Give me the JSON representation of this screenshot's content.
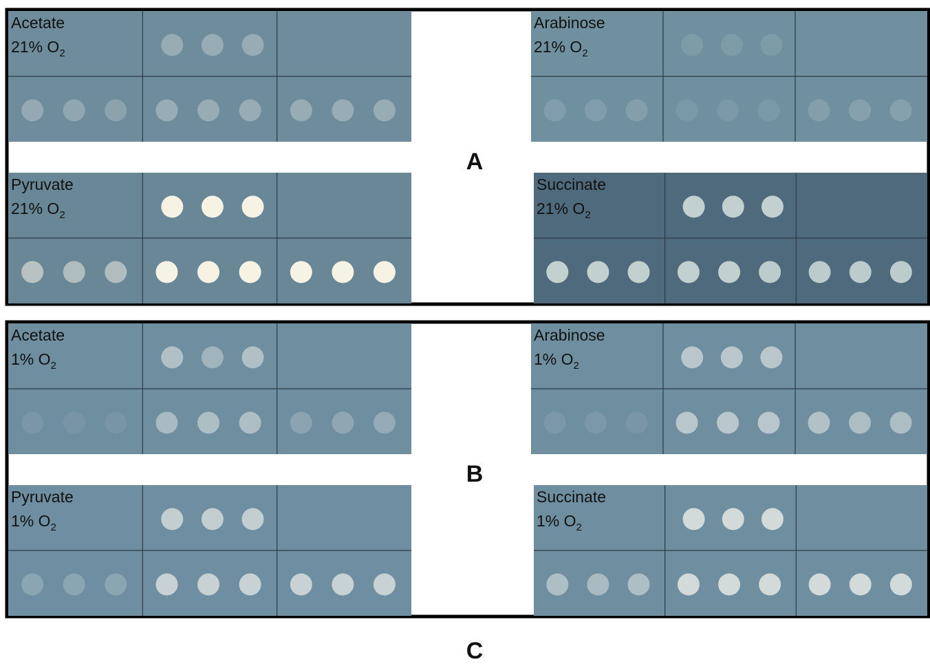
{
  "panels": [
    {
      "label": "A",
      "plates": [
        {
          "carbon_source": "Acetate",
          "oxygen": "21% O",
          "oxygen_subscript": "2"
        },
        {
          "carbon_source": "Arabinose",
          "oxygen": "21% O",
          "oxygen_subscript": "2"
        },
        {
          "carbon_source": "Pyruvate",
          "oxygen": "21% O",
          "oxygen_subscript": "2"
        },
        {
          "carbon_source": "Succinate",
          "oxygen": "21% O",
          "oxygen_subscript": "2"
        }
      ]
    },
    {
      "label": "B",
      "plates": [
        {
          "carbon_source": "Acetate",
          "oxygen": "1% O",
          "oxygen_subscript": "2"
        },
        {
          "carbon_source": "Arabinose",
          "oxygen": "1% O",
          "oxygen_subscript": "2"
        },
        {
          "carbon_source": "Pyruvate",
          "oxygen": "1% O",
          "oxygen_subscript": "2"
        },
        {
          "carbon_source": "Succinate",
          "oxygen": "1% O",
          "oxygen_subscript": "2"
        }
      ]
    }
  ],
  "caption_label": "C"
}
